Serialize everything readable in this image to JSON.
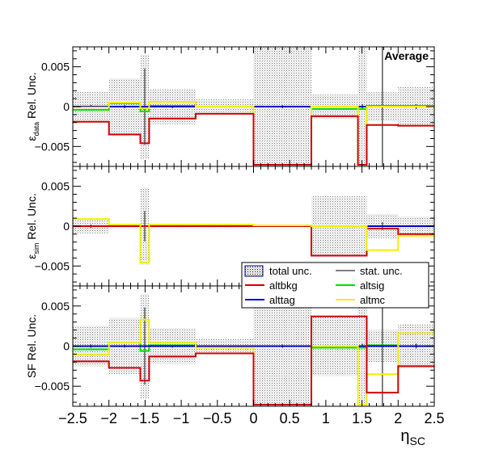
{
  "chart_data": {
    "type": "line",
    "annotation": "Average",
    "xlabel": "η",
    "xlabel_sub": "SC",
    "xlim": [
      -2.5,
      2.5
    ],
    "x_ticks": [
      -2.5,
      -2,
      -1.5,
      -1,
      -0.5,
      0,
      0.5,
      1,
      1.5,
      2,
      2.5
    ],
    "x_tick_labels": [
      "−2.5",
      "−2",
      "−1.5",
      "−1",
      "−0.5",
      "0",
      "0.5",
      "1",
      "1.5",
      "2",
      "2.5"
    ],
    "bin_edges": [
      -2.5,
      -2.0,
      -1.566,
      -1.444,
      -0.8,
      0.0,
      0.8,
      1.444,
      1.566,
      2.0,
      2.5
    ],
    "legend": {
      "placement": "bottom-center of middle panel",
      "entries": [
        {
          "key": "total",
          "label": "total unc."
        },
        {
          "key": "stat",
          "label": "stat. unc."
        },
        {
          "key": "altbkg",
          "label": "altbkg"
        },
        {
          "key": "altsig",
          "label": "altsig"
        },
        {
          "key": "alttag",
          "label": "alttag"
        },
        {
          "key": "altmc",
          "label": "altmc"
        }
      ]
    },
    "colors": {
      "altbkg": "#d40000",
      "altsig": "#00e000",
      "alttag": "#0000cc",
      "altmc": "#f2ef00",
      "total": "#000000",
      "stat": "#000000"
    },
    "panels": [
      {
        "name": "data",
        "ylabel": "ε",
        "ylabel_sub": "data",
        "ylabel_suffix": " Rel. Unc.",
        "ylim": [
          -0.0075,
          0.0075
        ],
        "y_ticks": [
          -0.005,
          0,
          0.005
        ],
        "y_tick_labels": [
          "−0.005",
          "0",
          "0.005"
        ],
        "total_unc": [
          0.0019,
          0.0035,
          0.0065,
          0.0022,
          0.0009,
          0.0082,
          0.0015,
          0.0082,
          0.0018,
          0.0025
        ],
        "stat_unc": [
          0.0002,
          0.0002,
          0.0048,
          0.0002,
          0.0001,
          0.0002,
          0.0001,
          0.0003,
          0.009,
          0.0003
        ],
        "series": [
          {
            "name": "altsig",
            "values": [
              -0.0004,
              0.0004,
              -0.0006,
              0.0001,
              0.0,
              0.0,
              -0.0003,
              -0.0003,
              0.0001,
              0.0001
            ]
          },
          {
            "name": "alttag",
            "values": [
              0.0,
              0.0,
              0.0,
              0.0,
              0.0,
              0.0,
              0.0,
              0.0,
              0.0,
              0.0
            ]
          },
          {
            "name": "altmc",
            "values": [
              -0.0001,
              0.0005,
              -0.0002,
              0.0006,
              0.0,
              -0.0073,
              0.0,
              -0.0073,
              0.0,
              0.0
            ]
          },
          {
            "name": "altbkg",
            "values": [
              -0.0019,
              -0.0035,
              -0.0046,
              -0.0015,
              -0.0009,
              -0.0073,
              -0.0012,
              -0.0073,
              -0.0023,
              -0.0024
            ]
          }
        ]
      },
      {
        "name": "sim",
        "ylabel": "ε",
        "ylabel_sub": "sim",
        "ylabel_suffix": " Rel. Unc.",
        "ylim": [
          -0.0075,
          0.0075
        ],
        "y_ticks": [
          -0.005,
          0,
          0.005
        ],
        "y_tick_labels": [
          "−0.005",
          "0",
          "0.005"
        ],
        "total_unc": [
          0.0009,
          0.0002,
          0.0048,
          0.0002,
          0.0002,
          0.0001,
          0.0038,
          0.0038,
          0.0015,
          0.0012
        ],
        "stat_unc": [
          0.0002,
          0.0001,
          0.0019,
          0.0001,
          0.0001,
          0.0001,
          0.0001,
          0.0001,
          0.0005,
          0.0001
        ],
        "series": [
          {
            "name": "altsig",
            "values": [
              0.0,
              0.0,
              0.0,
              0.0,
              0.0,
              0.0,
              0.0,
              0.0,
              0.0,
              0.0
            ]
          },
          {
            "name": "alttag",
            "values": [
              0.0,
              0.0,
              0.0,
              0.0,
              0.0,
              0.0,
              0.0,
              0.0,
              0.0,
              0.0
            ]
          },
          {
            "name": "altbkg",
            "values": [
              0.0,
              0.0,
              0.0,
              0.0,
              0.0,
              0.0,
              -0.0037,
              -0.0037,
              -0.0003,
              -0.001
            ]
          },
          {
            "name": "altmc",
            "values": [
              0.0009,
              0.0002,
              -0.0046,
              0.0002,
              0.0002,
              0.0001,
              0.0,
              0.0,
              -0.003,
              -0.0012
            ]
          }
        ]
      },
      {
        "name": "sf",
        "ylabel": "SF Rel. Unc.",
        "ylabel_sub": "",
        "ylabel_suffix": "",
        "ylim": [
          -0.0075,
          0.0075
        ],
        "y_ticks": [
          -0.005,
          0,
          0.005
        ],
        "y_tick_labels": [
          "−0.005",
          "0",
          "0.005"
        ],
        "total_unc": [
          0.0025,
          0.0035,
          0.0065,
          0.0022,
          0.0009,
          0.0082,
          0.0037,
          0.0082,
          0.002,
          0.0027
        ],
        "stat_unc": [
          0.0002,
          0.0002,
          0.0048,
          0.0002,
          0.0001,
          0.0002,
          0.0001,
          0.0003,
          0.009,
          0.0003
        ],
        "series": [
          {
            "name": "altsig",
            "values": [
              -0.0004,
              0.0004,
              -0.0006,
              0.0001,
              0.0,
              0.0,
              -0.0002,
              -0.0002,
              0.0001,
              0.0
            ]
          },
          {
            "name": "alttag",
            "values": [
              0.0,
              0.0,
              0.0,
              0.0,
              0.0,
              0.0,
              0.0,
              0.0,
              0.0,
              0.0
            ]
          },
          {
            "name": "altmc",
            "values": [
              -0.0011,
              0.0004,
              0.0033,
              0.0004,
              -0.0002,
              -0.0073,
              0.0,
              -0.0073,
              -0.0035,
              0.0016
            ]
          },
          {
            "name": "altbkg",
            "values": [
              -0.0019,
              -0.0027,
              -0.0043,
              -0.0013,
              -0.0009,
              -0.0073,
              0.0037,
              0.0037,
              -0.0058,
              -0.0025
            ]
          }
        ]
      }
    ]
  }
}
